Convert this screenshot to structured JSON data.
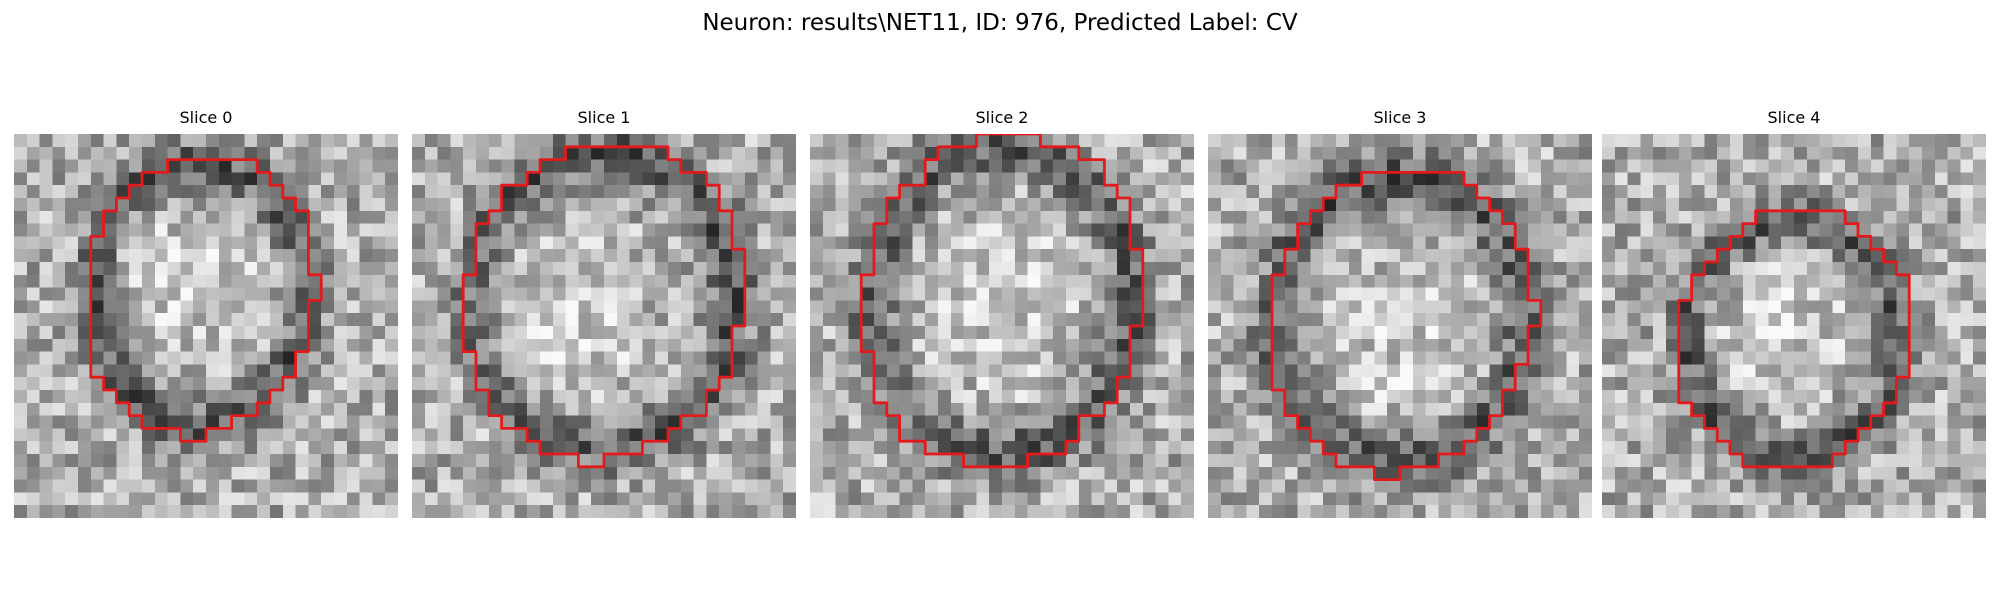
{
  "figure": {
    "title": "Neuron: results\\NET11, ID: 976, Predicted Label: CV",
    "contour_color": "#e31a1c",
    "colormap": "gray"
  },
  "panels": [
    {
      "title": "Slice 0",
      "ring": {
        "cx": 14.5,
        "cy": 12.5,
        "rx": 9.0,
        "ry": 11.0
      },
      "bright": {
        "cx": 14.5,
        "cy": 11.5,
        "r": 4.5
      }
    },
    {
      "title": "Slice 1",
      "ring": {
        "cx": 15.0,
        "cy": 13.0,
        "rx": 11.0,
        "ry": 12.5
      },
      "bright": {
        "cx": 11.0,
        "cy": 16.0,
        "r": 5.5
      }
    },
    {
      "title": "Slice 2",
      "ring": {
        "cx": 15.0,
        "cy": 13.0,
        "rx": 11.0,
        "ry": 13.0
      },
      "bright": {
        "cx": 15.0,
        "cy": 13.0,
        "r": 6.0
      }
    },
    {
      "title": "Slice 3",
      "ring": {
        "cx": 15.0,
        "cy": 14.5,
        "rx": 10.5,
        "ry": 12.0
      },
      "bright": {
        "cx": 15.0,
        "cy": 16.0,
        "r": 5.0
      }
    },
    {
      "title": "Slice 4",
      "ring": {
        "cx": 15.0,
        "cy": 16.0,
        "rx": 9.0,
        "ry": 10.0
      },
      "bright": {
        "cx": 14.0,
        "cy": 15.0,
        "r": 4.0
      }
    }
  ]
}
